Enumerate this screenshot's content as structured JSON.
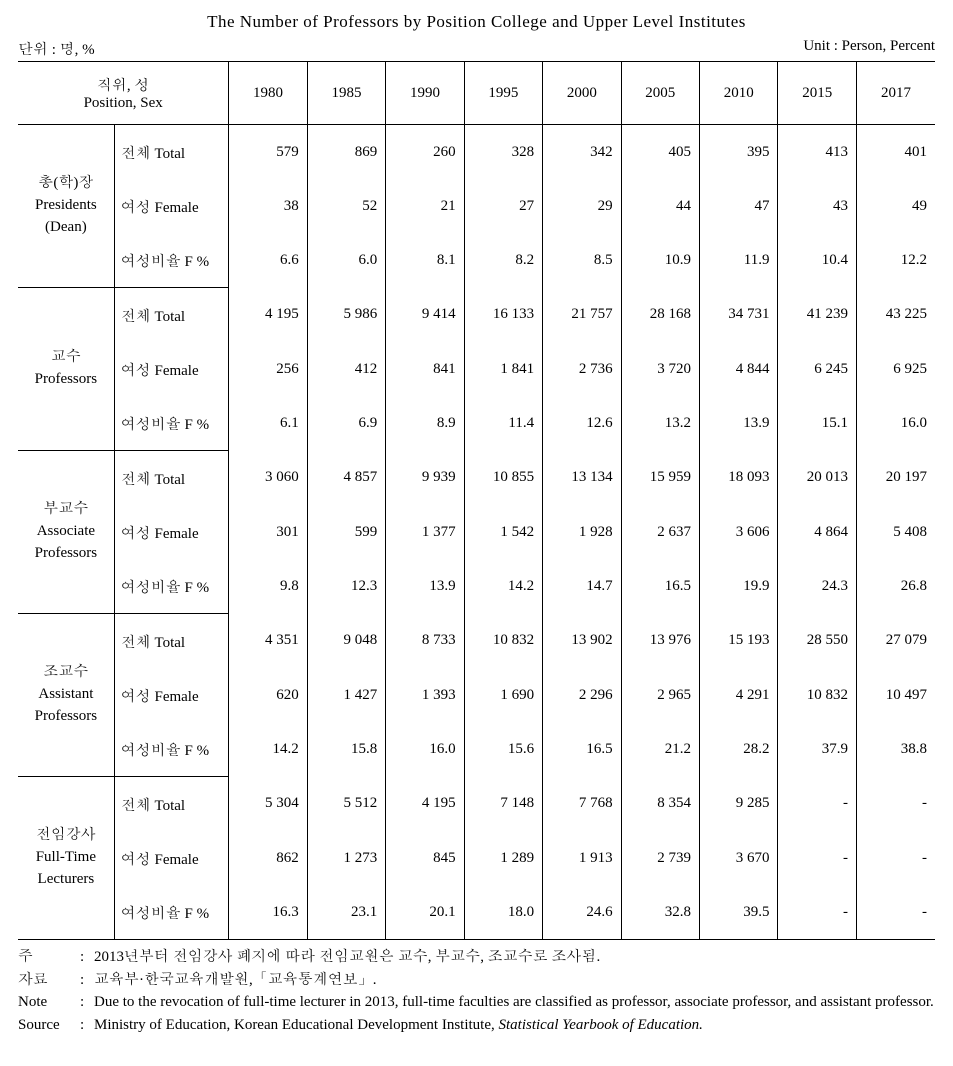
{
  "title": "The Number of Professors by Position College and Upper Level Institutes",
  "unit_left": "단위 : 명, %",
  "unit_right": "Unit : Person, Percent",
  "header": {
    "position_label_ko": "직위, 성",
    "position_label_en": "Position, Sex"
  },
  "years": [
    "1980",
    "1985",
    "1990",
    "1995",
    "2000",
    "2005",
    "2010",
    "2015",
    "2017"
  ],
  "sub_labels": {
    "total": "전체 Total",
    "female": "여성 Female",
    "fpct": "여성비율 F %"
  },
  "groups": [
    {
      "label_lines": [
        "총(학)장",
        "Presidents",
        "(Dean)"
      ],
      "rows": {
        "total": [
          "579",
          "869",
          "260",
          "328",
          "342",
          "405",
          "395",
          "413",
          "401"
        ],
        "female": [
          "38",
          "52",
          "21",
          "27",
          "29",
          "44",
          "47",
          "43",
          "49"
        ],
        "fpct": [
          "6.6",
          "6.0",
          "8.1",
          "8.2",
          "8.5",
          "10.9",
          "11.9",
          "10.4",
          "12.2"
        ]
      }
    },
    {
      "label_lines": [
        "교수",
        "Professors"
      ],
      "rows": {
        "total": [
          "4 195",
          "5 986",
          "9 414",
          "16 133",
          "21 757",
          "28 168",
          "34 731",
          "41 239",
          "43 225"
        ],
        "female": [
          "256",
          "412",
          "841",
          "1 841",
          "2 736",
          "3 720",
          "4 844",
          "6 245",
          "6 925"
        ],
        "fpct": [
          "6.1",
          "6.9",
          "8.9",
          "11.4",
          "12.6",
          "13.2",
          "13.9",
          "15.1",
          "16.0"
        ]
      }
    },
    {
      "label_lines": [
        "부교수",
        "Associate",
        "Professors"
      ],
      "rows": {
        "total": [
          "3 060",
          "4 857",
          "9 939",
          "10 855",
          "13 134",
          "15 959",
          "18 093",
          "20 013",
          "20 197"
        ],
        "female": [
          "301",
          "599",
          "1 377",
          "1 542",
          "1 928",
          "2 637",
          "3 606",
          "4 864",
          "5 408"
        ],
        "fpct": [
          "9.8",
          "12.3",
          "13.9",
          "14.2",
          "14.7",
          "16.5",
          "19.9",
          "24.3",
          "26.8"
        ]
      }
    },
    {
      "label_lines": [
        "조교수",
        "Assistant",
        "Professors"
      ],
      "rows": {
        "total": [
          "4 351",
          "9 048",
          "8 733",
          "10 832",
          "13 902",
          "13 976",
          "15 193",
          "28 550",
          "27 079"
        ],
        "female": [
          "620",
          "1 427",
          "1 393",
          "1 690",
          "2 296",
          "2 965",
          "4 291",
          "10 832",
          "10 497"
        ],
        "fpct": [
          "14.2",
          "15.8",
          "16.0",
          "15.6",
          "16.5",
          "21.2",
          "28.2",
          "37.9",
          "38.8"
        ]
      }
    },
    {
      "label_lines": [
        "전임강사",
        "Full-Time",
        "Lecturers"
      ],
      "rows": {
        "total": [
          "5 304",
          "5 512",
          "4 195",
          "7 148",
          "7 768",
          "8 354",
          "9 285",
          "-",
          "-"
        ],
        "female": [
          "862",
          "1 273",
          "845",
          "1 289",
          "1 913",
          "2 739",
          "3 670",
          "-",
          "-"
        ],
        "fpct": [
          "16.3",
          "23.1",
          "20.1",
          "18.0",
          "24.6",
          "32.8",
          "39.5",
          "-",
          "-"
        ]
      }
    }
  ],
  "notes": {
    "ju_label": "주",
    "ju_text": "2013년부터 전임강사 폐지에 따라 전임교원은 교수, 부교수, 조교수로 조사됨.",
    "jaryo_label": "자료",
    "jaryo_text": "교육부·한국교육개발원,「교육통계연보」.",
    "note_label": "Note",
    "note_text": "Due to the revocation of full-time lecturer in 2013, full-time faculties are classified as professor, associate professor, and assistant professor.",
    "source_label": "Source",
    "source_prefix": "Ministry of Education, Korean Educational Development Institute, ",
    "source_italic": "Statistical Yearbook of Education.",
    "colon": ":"
  },
  "layout": {
    "col_widths_pct": [
      10.5,
      12.5,
      8.56,
      8.56,
      8.56,
      8.56,
      8.56,
      8.56,
      8.56,
      8.56,
      8.56
    ]
  }
}
